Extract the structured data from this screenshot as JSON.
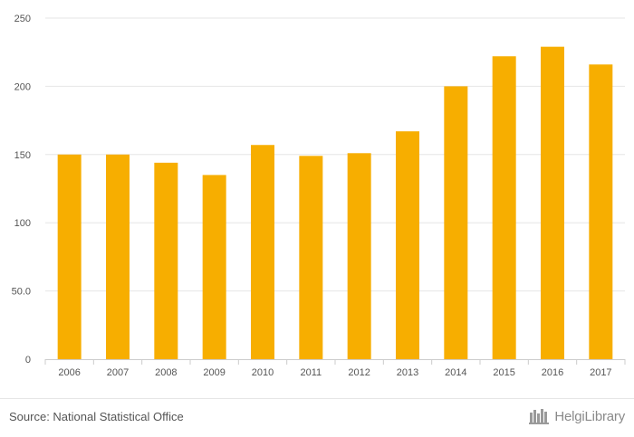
{
  "chart_data": {
    "type": "bar",
    "categories": [
      "2006",
      "2007",
      "2008",
      "2009",
      "2010",
      "2011",
      "2012",
      "2013",
      "2014",
      "2015",
      "2016",
      "2017"
    ],
    "values": [
      150,
      150,
      144,
      135,
      157,
      149,
      151,
      167,
      200,
      222,
      229,
      216
    ],
    "title": "",
    "xlabel": "",
    "ylabel": "",
    "ylim": [
      0,
      250
    ],
    "yticks": [
      0,
      50,
      100,
      150,
      200,
      250
    ],
    "ytick_labels": [
      "0",
      "50.0",
      "100",
      "150",
      "200",
      "250"
    ],
    "grid": true,
    "legend": "none",
    "bar_color": "#f7ae00",
    "grid_color": "#e6e6e6"
  },
  "footer": {
    "source": "Source: National Statistical Office",
    "brand": "HelgiLibrary",
    "brand_icon": "bookshelf-logo-icon"
  }
}
